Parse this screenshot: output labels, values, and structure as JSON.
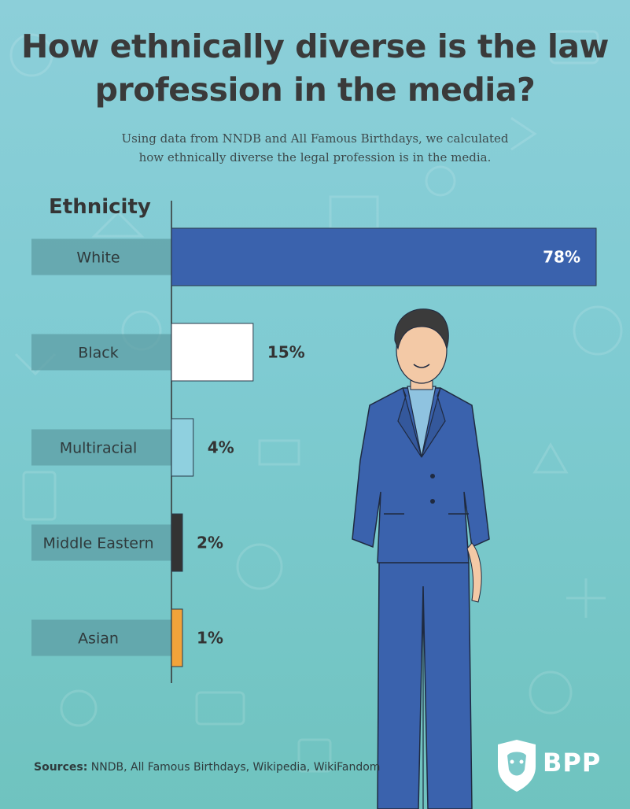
{
  "title": "How ethnically diverse is the law profession in the media?",
  "subtitle_line1": "Using data from NNDB and All Famous Birthdays, we calculated",
  "subtitle_line2": "how ethnically diverse the legal profession is in the media.",
  "sources_label": "Sources:",
  "sources_text": "NNDB, All Famous Birthdays, Wikipedia, WikiFandom",
  "logo_text": "BPP",
  "chart_data": {
    "type": "bar",
    "orientation": "horizontal",
    "title": "How ethnically diverse is the law profession in the media?",
    "ylabel": "Ethnicity",
    "categories": [
      "White",
      "Black",
      "Multiracial",
      "Middle Eastern",
      "Asian"
    ],
    "values": [
      78,
      15,
      4,
      2,
      1
    ],
    "value_labels": [
      "78%",
      "15%",
      "4%",
      "2%",
      "1%"
    ],
    "unit": "%",
    "colors": [
      "#3a62ad",
      "#ffffff",
      "#8fd0df",
      "#333333",
      "#f2a33a"
    ],
    "xlim": [
      0,
      78
    ],
    "grid": false
  }
}
